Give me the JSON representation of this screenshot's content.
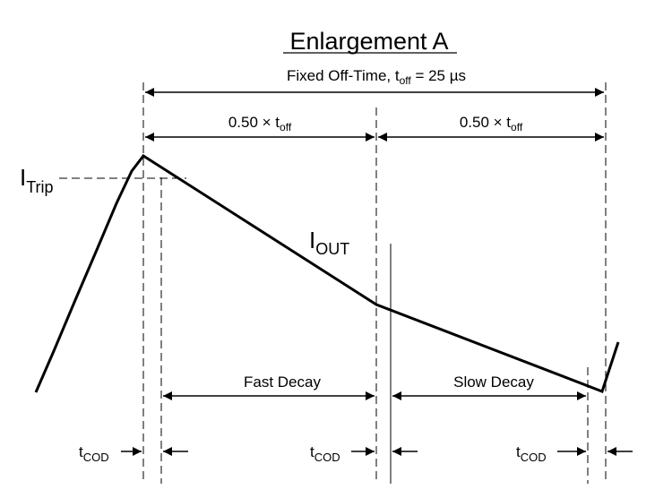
{
  "title": "Enlargement A",
  "fixed_off_time": {
    "prefix": "Fixed Off-Time, t",
    "sub": "off",
    "suffix": " = 25 µs"
  },
  "half_off_time": {
    "prefix": "0.50 × t",
    "sub": "off"
  },
  "itrip": {
    "main": "I",
    "sub": "Trip"
  },
  "iout": {
    "main": "I",
    "sub": "OUT"
  },
  "fast_decay": "Fast Decay",
  "slow_decay": "Slow Decay",
  "tcod": {
    "main": "t",
    "sub": "COD"
  },
  "colors": {
    "line": "#000000",
    "background": "#ffffff"
  }
}
